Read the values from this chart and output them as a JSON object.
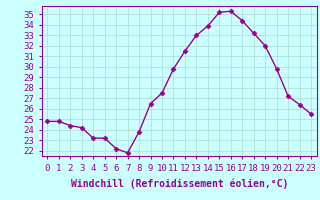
{
  "x": [
    0,
    1,
    2,
    3,
    4,
    5,
    6,
    7,
    8,
    9,
    10,
    11,
    12,
    13,
    14,
    15,
    16,
    17,
    18,
    19,
    20,
    21,
    22,
    23
  ],
  "y": [
    24.8,
    24.8,
    24.4,
    24.2,
    23.2,
    23.2,
    22.2,
    21.8,
    23.8,
    26.5,
    27.5,
    29.8,
    31.5,
    33.0,
    33.9,
    35.2,
    35.3,
    34.4,
    33.2,
    32.0,
    29.8,
    27.2,
    26.4,
    25.5
  ],
  "line_color": "#990099",
  "marker": "D",
  "markersize": 2.5,
  "linewidth": 1.0,
  "bg_color": "#ccffff",
  "grid_color": "#aaddcc",
  "xlabel": "Windchill (Refroidissement éolien,°C)",
  "xlabel_fontsize": 7,
  "ylabel_ticks": [
    22,
    23,
    24,
    25,
    26,
    27,
    28,
    29,
    30,
    31,
    32,
    33,
    34,
    35
  ],
  "ylim": [
    21.5,
    35.8
  ],
  "xlim": [
    -0.5,
    23.5
  ],
  "xtick_labels": [
    "0",
    "1",
    "2",
    "3",
    "4",
    "5",
    "6",
    "7",
    "8",
    "9",
    "10",
    "11",
    "12",
    "13",
    "14",
    "15",
    "16",
    "17",
    "18",
    "19",
    "20",
    "21",
    "22",
    "23"
  ],
  "tick_fontsize": 6.5
}
